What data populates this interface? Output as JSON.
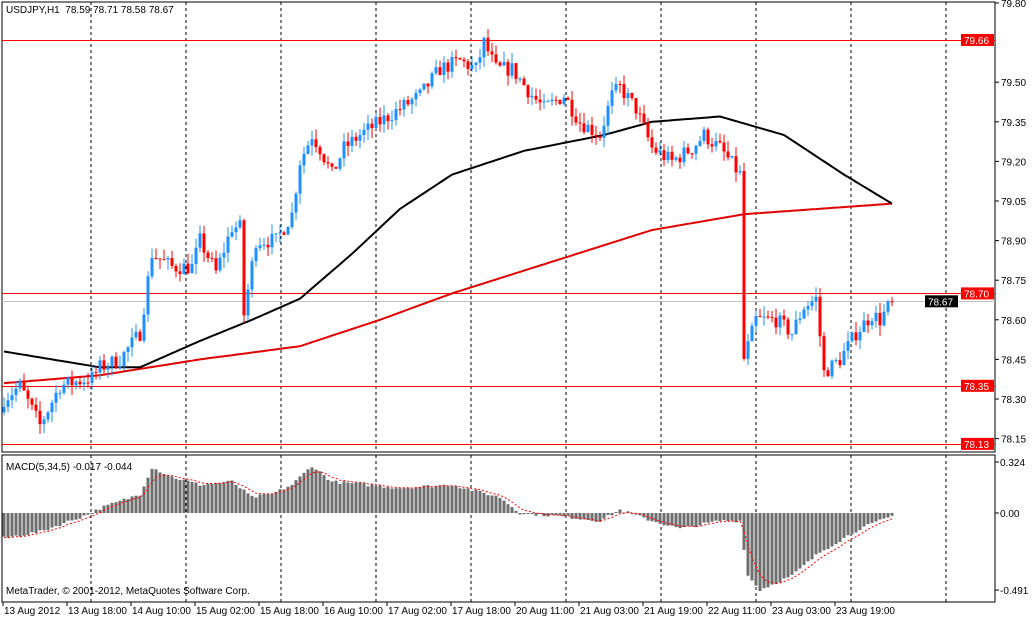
{
  "header": {
    "symbol": "USDJPY,H1",
    "ohlc": "78.59 78.71 78.58 78.67"
  },
  "macd_header": {
    "label": "MACD(5,34,5)",
    "values": "-0.017 -0.044"
  },
  "copyright": "MetaTrader, © 2001-2012, MetaQuotes Software Corp.",
  "colors": {
    "bull": "#1E90FF",
    "bear": "#FF0000",
    "ma_fast": "#000000",
    "ma_slow": "#E00000",
    "hist": "#6E6E6E",
    "signal": "#FF0000",
    "level": "#FF0000",
    "bid": "#C0C0C0"
  },
  "chart_data": {
    "type": "candlestick",
    "title": "USDJPY,H1",
    "price_axis": {
      "range": [
        78.13,
        79.8
      ],
      "ticks": [
        "79.80",
        "79.50",
        "79.35",
        "79.20",
        "79.05",
        "78.90",
        "78.75",
        "78.60",
        "78.45",
        "78.30",
        "78.15"
      ]
    },
    "levels": [
      {
        "price": 79.66,
        "label": "79.66",
        "style": "red"
      },
      {
        "price": 78.7,
        "label": "78.70",
        "style": "red"
      },
      {
        "price": 78.67,
        "label": "78.67",
        "style": "bid"
      },
      {
        "price": 78.35,
        "label": "78.35",
        "style": "red"
      },
      {
        "price": 78.13,
        "label": "78.13",
        "style": "red"
      }
    ],
    "bar_count": 223,
    "time_ticks": [
      {
        "bar": 0,
        "label": "13 Aug 2012"
      },
      {
        "bar": 16,
        "label": "13 Aug 18:00"
      },
      {
        "bar": 32,
        "label": "14 Aug 10:00"
      },
      {
        "bar": 48,
        "label": "15 Aug 02:00"
      },
      {
        "bar": 64,
        "label": "15 Aug 18:00"
      },
      {
        "bar": 80,
        "label": "16 Aug 10:00"
      },
      {
        "bar": 96,
        "label": "17 Aug 02:00"
      },
      {
        "bar": 112,
        "label": "17 Aug 18:00"
      },
      {
        "bar": 128,
        "label": "20 Aug 11:00"
      },
      {
        "bar": 144,
        "label": "21 Aug 03:00"
      },
      {
        "bar": 160,
        "label": "21 Aug 19:00"
      },
      {
        "bar": 176,
        "label": "22 Aug 11:00"
      },
      {
        "bar": 192,
        "label": "23 Aug 03:00"
      },
      {
        "bar": 208,
        "label": "23 Aug 19:00"
      }
    ],
    "close_path": [
      [
        0,
        78.3
      ],
      [
        4,
        78.35
      ],
      [
        9,
        78.2
      ],
      [
        14,
        78.35
      ],
      [
        22,
        78.38
      ],
      [
        24,
        78.42
      ],
      [
        29,
        78.45
      ],
      [
        34,
        78.55
      ],
      [
        37,
        78.85
      ],
      [
        42,
        78.8
      ],
      [
        47,
        78.8
      ],
      [
        49,
        78.9
      ],
      [
        53,
        78.78
      ],
      [
        57,
        78.95
      ],
      [
        59,
        78.95
      ],
      [
        60,
        78.62
      ],
      [
        63,
        78.9
      ],
      [
        68,
        78.9
      ],
      [
        72,
        79.0
      ],
      [
        74,
        79.2
      ],
      [
        77,
        79.3
      ],
      [
        79,
        79.25
      ],
      [
        82,
        79.15
      ],
      [
        85,
        79.25
      ],
      [
        89,
        79.3
      ],
      [
        94,
        79.35
      ],
      [
        99,
        79.4
      ],
      [
        104,
        79.45
      ],
      [
        109,
        79.55
      ],
      [
        114,
        79.58
      ],
      [
        118,
        79.55
      ],
      [
        120,
        79.65
      ],
      [
        123,
        79.55
      ],
      [
        127,
        79.55
      ],
      [
        132,
        79.45
      ],
      [
        135,
        79.4
      ],
      [
        140,
        79.45
      ],
      [
        144,
        79.35
      ],
      [
        149,
        79.3
      ],
      [
        152,
        79.45
      ],
      [
        154,
        79.48
      ],
      [
        158,
        79.4
      ],
      [
        162,
        79.25
      ],
      [
        167,
        79.2
      ],
      [
        172,
        79.25
      ],
      [
        175,
        79.3
      ],
      [
        179,
        79.25
      ],
      [
        184,
        79.15
      ],
      [
        185,
        78.45
      ],
      [
        188,
        78.6
      ],
      [
        193,
        78.6
      ],
      [
        197,
        78.55
      ],
      [
        200,
        78.65
      ],
      [
        203,
        78.68
      ],
      [
        205,
        78.4
      ],
      [
        209,
        78.45
      ],
      [
        213,
        78.55
      ],
      [
        217,
        78.62
      ],
      [
        219,
        78.6
      ],
      [
        222,
        78.67
      ]
    ],
    "ma_fast_path": [
      [
        0,
        78.48
      ],
      [
        24,
        78.42
      ],
      [
        34,
        78.42
      ],
      [
        49,
        78.52
      ],
      [
        62,
        78.6
      ],
      [
        74,
        78.68
      ],
      [
        87,
        78.85
      ],
      [
        99,
        79.02
      ],
      [
        112,
        79.15
      ],
      [
        130,
        79.24
      ],
      [
        150,
        79.3
      ],
      [
        162,
        79.35
      ],
      [
        179,
        79.37
      ],
      [
        195,
        79.3
      ],
      [
        210,
        79.15
      ],
      [
        222,
        79.04
      ]
    ],
    "ma_slow_path": [
      [
        0,
        78.36
      ],
      [
        24,
        78.39
      ],
      [
        49,
        78.45
      ],
      [
        74,
        78.5
      ],
      [
        94,
        78.6
      ],
      [
        112,
        78.7
      ],
      [
        137,
        78.82
      ],
      [
        162,
        78.94
      ],
      [
        185,
        79.0
      ],
      [
        222,
        79.04
      ]
    ],
    "macd": {
      "label": "MACD(5,34,5)",
      "range": [
        -0.491,
        0.324
      ],
      "ticks": [
        "0.324",
        "0.00",
        "-0.491"
      ],
      "hist_path": [
        [
          0,
          -0.16
        ],
        [
          9,
          -0.12
        ],
        [
          22,
          0.0
        ],
        [
          24,
          0.03
        ],
        [
          34,
          0.12
        ],
        [
          37,
          0.29
        ],
        [
          42,
          0.23
        ],
        [
          49,
          0.18
        ],
        [
          57,
          0.2
        ],
        [
          62,
          0.1
        ],
        [
          67,
          0.12
        ],
        [
          72,
          0.18
        ],
        [
          77,
          0.3
        ],
        [
          82,
          0.2
        ],
        [
          99,
          0.16
        ],
        [
          112,
          0.18
        ],
        [
          124,
          0.1
        ],
        [
          129,
          0.0
        ],
        [
          139,
          -0.02
        ],
        [
          149,
          -0.05
        ],
        [
          154,
          0.02
        ],
        [
          162,
          -0.05
        ],
        [
          169,
          -0.1
        ],
        [
          179,
          -0.05
        ],
        [
          184,
          -0.05
        ],
        [
          186,
          -0.4
        ],
        [
          189,
          -0.49
        ],
        [
          197,
          -0.4
        ],
        [
          204,
          -0.25
        ],
        [
          214,
          -0.1
        ],
        [
          222,
          -0.02
        ]
      ]
    }
  }
}
